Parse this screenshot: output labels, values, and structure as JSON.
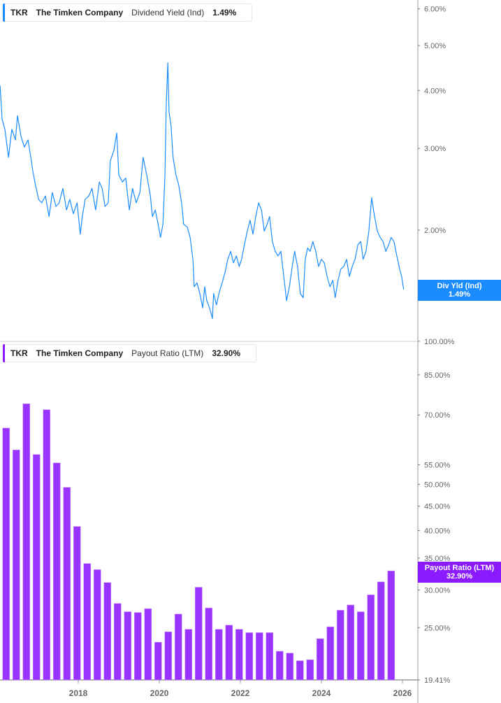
{
  "top_legend": {
    "ticker": "TKR",
    "company": "The Timken Company",
    "metric": "Dividend Yield (Ind)",
    "value": "1.49%"
  },
  "bottom_legend": {
    "ticker": "TKR",
    "company": "The Timken Company",
    "metric": "Payout Ratio (LTM)",
    "value": "32.90%"
  },
  "top_tag": {
    "label": "Div Yld (Ind)",
    "value": "1.49%"
  },
  "bottom_tag": {
    "label": "Payout Ratio (LTM)",
    "value": "32.90%"
  },
  "colors": {
    "yield_line": "#1a8cff",
    "bars": "#9933ff",
    "bar_tag": "#8c1aff",
    "yield_tag": "#1a8cff"
  },
  "chart_data": [
    {
      "type": "line",
      "scale": "log",
      "grid": false,
      "yticks": [
        "6.00%",
        "5.00%",
        "4.00%",
        "3.00%",
        "2.00%"
      ],
      "ytick_values": [
        6,
        5,
        4,
        3,
        2
      ],
      "ylim": [
        1.18,
        6.3
      ],
      "x": [
        2016.07,
        2016.12,
        2016.19,
        2016.28,
        2016.36,
        2016.45,
        2016.5,
        2016.59,
        2016.67,
        2016.76,
        2016.83,
        2016.88,
        2016.93,
        2017.02,
        2017.1,
        2017.19,
        2017.28,
        2017.36,
        2017.45,
        2017.53,
        2017.62,
        2017.71,
        2017.79,
        2017.88,
        2017.97,
        2018.05,
        2018.1,
        2018.17,
        2018.26,
        2018.34,
        2018.43,
        2018.52,
        2018.59,
        2018.66,
        2018.74,
        2018.79,
        2018.88,
        2018.95,
        2019.0,
        2019.09,
        2019.17,
        2019.26,
        2019.34,
        2019.43,
        2019.52,
        2019.6,
        2019.69,
        2019.78,
        2019.83,
        2019.9,
        2019.97,
        2020.03,
        2020.09,
        2020.14,
        2020.17,
        2020.21,
        2020.24,
        2020.29,
        2020.34,
        2020.41,
        2020.48,
        2020.55,
        2020.6,
        2020.69,
        2020.76,
        2020.83,
        2020.86,
        2020.93,
        2021.0,
        2021.07,
        2021.12,
        2021.17,
        2021.24,
        2021.31,
        2021.34,
        2021.41,
        2021.47,
        2021.55,
        2021.62,
        2021.69,
        2021.76,
        2021.83,
        2021.9,
        2021.97,
        2022.03,
        2022.1,
        2022.17,
        2022.24,
        2022.31,
        2022.38,
        2022.45,
        2022.52,
        2022.59,
        2022.66,
        2022.72,
        2022.79,
        2022.86,
        2022.93,
        2023.0,
        2023.07,
        2023.14,
        2023.21,
        2023.28,
        2023.34,
        2023.41,
        2023.48,
        2023.55,
        2023.6,
        2023.66,
        2023.72,
        2023.79,
        2023.86,
        2023.93,
        2024.0,
        2024.07,
        2024.14,
        2024.21,
        2024.28,
        2024.34,
        2024.41,
        2024.48,
        2024.55,
        2024.62,
        2024.69,
        2024.76,
        2024.83,
        2024.9,
        2024.97,
        2025.03,
        2025.1,
        2025.17,
        2025.24,
        2025.31,
        2025.38,
        2025.45,
        2025.52,
        2025.59,
        2025.66,
        2025.72,
        2025.79,
        2025.86,
        2025.93,
        2025.98,
        2026.03
      ],
      "y": [
        4.1,
        3.47,
        3.3,
        2.87,
        3.3,
        3.13,
        3.53,
        3.18,
        3.02,
        3.13,
        2.87,
        2.68,
        2.54,
        2.33,
        2.29,
        2.37,
        2.14,
        2.41,
        2.25,
        2.29,
        2.46,
        2.21,
        2.33,
        2.17,
        2.29,
        1.96,
        2.14,
        2.33,
        2.37,
        2.46,
        2.21,
        2.54,
        2.46,
        2.25,
        2.29,
        2.82,
        2.97,
        3.24,
        2.63,
        2.54,
        2.59,
        2.21,
        2.46,
        2.29,
        2.41,
        2.87,
        2.63,
        2.37,
        2.14,
        2.21,
        2.06,
        1.93,
        2.06,
        2.63,
        3.72,
        4.59,
        3.6,
        3.35,
        2.87,
        2.63,
        2.5,
        2.29,
        2.06,
        2.03,
        1.93,
        1.73,
        1.51,
        1.54,
        1.46,
        1.36,
        1.51,
        1.41,
        1.36,
        1.29,
        1.46,
        1.38,
        1.46,
        1.54,
        1.62,
        1.73,
        1.8,
        1.7,
        1.76,
        1.67,
        1.73,
        1.86,
        1.99,
        2.1,
        1.96,
        2.14,
        2.29,
        2.21,
        1.99,
        2.06,
        2.14,
        1.89,
        1.8,
        1.76,
        1.8,
        1.59,
        1.41,
        1.51,
        1.67,
        1.8,
        1.67,
        1.46,
        1.43,
        1.73,
        1.83,
        1.8,
        1.89,
        1.8,
        1.67,
        1.73,
        1.7,
        1.59,
        1.51,
        1.56,
        1.43,
        1.56,
        1.65,
        1.67,
        1.73,
        1.59,
        1.67,
        1.73,
        1.86,
        1.89,
        1.73,
        1.8,
        1.99,
        2.35,
        2.14,
        1.99,
        1.93,
        1.89,
        1.8,
        1.86,
        1.93,
        1.89,
        1.76,
        1.65,
        1.59,
        1.49
      ]
    },
    {
      "type": "bar",
      "scale": "log",
      "grid": false,
      "yticks": [
        "100.00%",
        "85.00%",
        "70.00%",
        "55.00%",
        "50.00%",
        "45.00%",
        "40.00%",
        "35.00%",
        "30.00%",
        "25.00%",
        "19.41%"
      ],
      "ytick_values": [
        100,
        85,
        70,
        55,
        50,
        45,
        40,
        35,
        30,
        25,
        19.41
      ],
      "ylim": [
        19.41,
        100
      ],
      "xticks": [
        "2018",
        "2020",
        "2022",
        "2024",
        "2026"
      ],
      "categories": [
        "2016-03",
        "2016-06",
        "2016-09",
        "2016-12",
        "2017-03",
        "2017-06",
        "2017-09",
        "2017-12",
        "2018-03",
        "2018-06",
        "2018-09",
        "2018-12",
        "2019-03",
        "2019-06",
        "2019-09",
        "2019-12",
        "2020-03",
        "2020-06",
        "2020-09",
        "2020-12",
        "2021-03",
        "2021-06",
        "2021-09",
        "2021-12",
        "2022-03",
        "2022-06",
        "2022-09",
        "2022-12",
        "2023-03",
        "2023-06",
        "2023-09",
        "2023-12",
        "2024-03",
        "2024-06",
        "2024-09",
        "2024-12",
        "2025-03",
        "2025-06",
        "2025-09"
      ],
      "values": [
        65.7,
        59.1,
        73.9,
        57.8,
        71.8,
        55.5,
        49.3,
        40.8,
        34.1,
        33.1,
        31.1,
        28.1,
        27.0,
        26.9,
        27.4,
        23.3,
        24.5,
        26.7,
        24.8,
        30.4,
        27.5,
        24.8,
        25.3,
        24.8,
        24.4,
        24.4,
        24.4,
        22.3,
        22.1,
        21.3,
        21.4,
        23.7,
        25.1,
        27.2,
        27.9,
        27.0,
        29.3,
        31.2,
        32.9
      ]
    }
  ]
}
